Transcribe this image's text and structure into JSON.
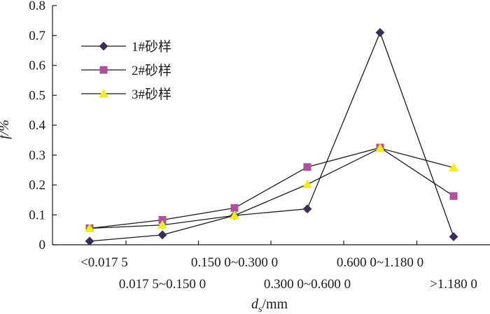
{
  "chart_data": {
    "type": "line",
    "categories": [
      "<0.017 5",
      "0.017 5~0.150 0",
      "0.150 0~0.300 0",
      "0.300 0~0.600 0",
      "0.600 0~1.180 0",
      ">1.180 0"
    ],
    "series": [
      {
        "name": "1#砂样",
        "marker": "diamond",
        "color": "#3a2e52",
        "values": [
          0.012,
          0.033,
          0.098,
          0.12,
          0.71,
          0.027
        ]
      },
      {
        "name": "2#砂样",
        "marker": "square",
        "color": "#b04f9c",
        "values": [
          0.055,
          0.083,
          0.123,
          0.26,
          0.325,
          0.163
        ]
      },
      {
        "name": "3#砂样",
        "marker": "triangle",
        "color": "#f2ec1b",
        "values": [
          0.055,
          0.066,
          0.098,
          0.202,
          0.323,
          0.258
        ]
      }
    ],
    "ylabel": "f/%",
    "xlabel": "ds/mm",
    "xlabel_main": "d",
    "xlabel_sub": "s",
    "xlabel_unit": "/mm",
    "ylim": [
      0,
      0.8
    ],
    "yticks": [
      "0",
      "0.1",
      "0.2",
      "0.3",
      "0.4",
      "0.5",
      "0.6",
      "0.7",
      "0.8"
    ],
    "grid": false,
    "legend": "top-left",
    "line_color": "#1a1a1a"
  }
}
